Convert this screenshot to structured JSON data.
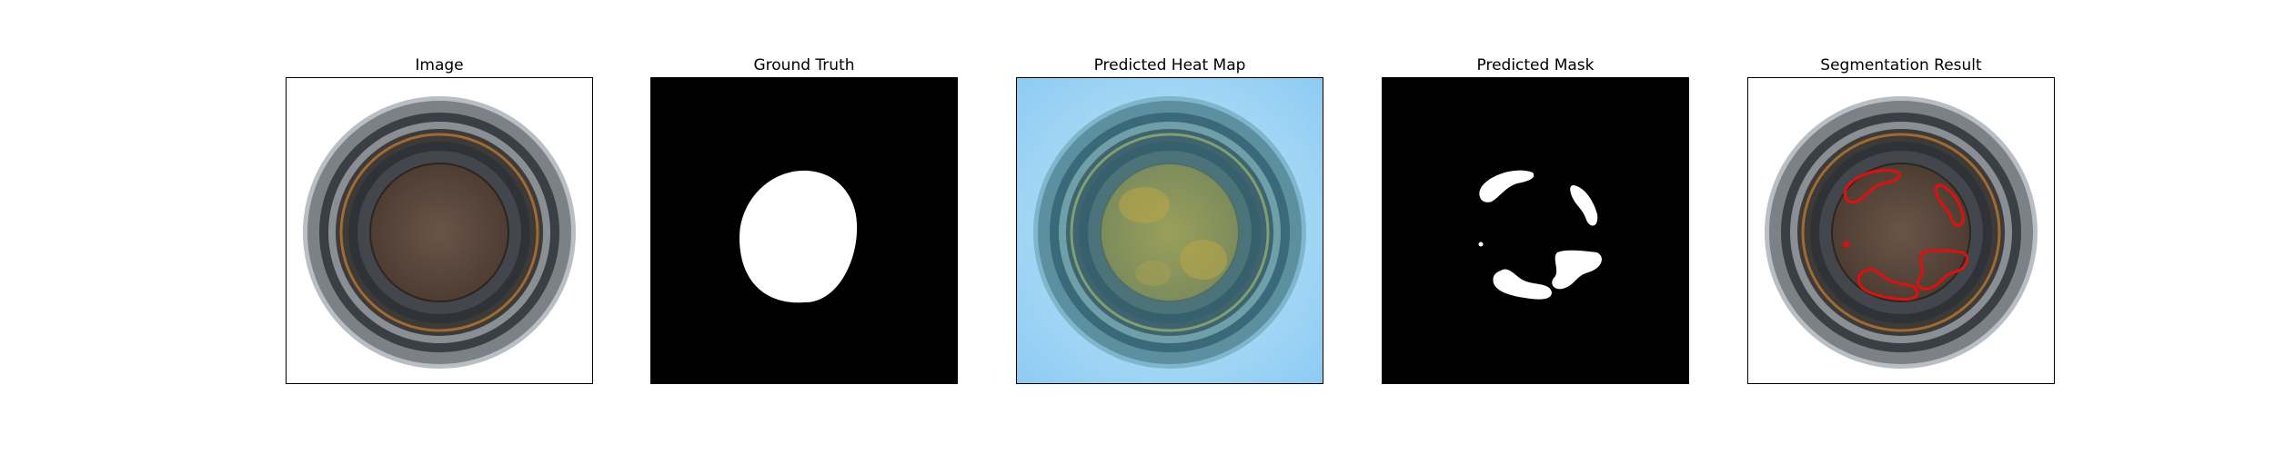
{
  "figure": {
    "panels": [
      {
        "id": "image",
        "title": "Image"
      },
      {
        "id": "ground-truth",
        "title": "Ground Truth"
      },
      {
        "id": "heat-map",
        "title": "Predicted Heat Map"
      },
      {
        "id": "mask",
        "title": "Predicted Mask"
      },
      {
        "id": "segmentation",
        "title": "Segmentation Result"
      }
    ]
  },
  "colors": {
    "frame": "#000000",
    "mask_foreground": "#ffffff",
    "mask_background": "#000000",
    "contour": "#e01010",
    "heat_low": "#8fd0f5",
    "heat_high": "#b8a440"
  }
}
